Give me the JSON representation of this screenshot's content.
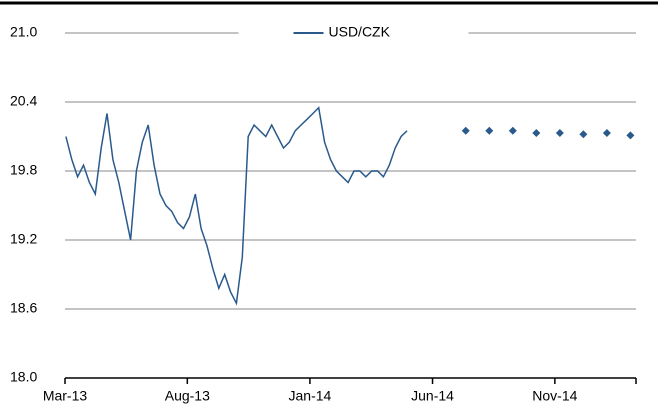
{
  "chart_data": {
    "type": "line",
    "series": [
      {
        "name": "USD/CZK",
        "color": "#2a5a8c",
        "x": [
          2013.17,
          2013.19,
          2013.21,
          2013.23,
          2013.25,
          2013.27,
          2013.29,
          2013.31,
          2013.33,
          2013.35,
          2013.37,
          2013.39,
          2013.41,
          2013.43,
          2013.45,
          2013.47,
          2013.49,
          2013.51,
          2013.53,
          2013.55,
          2013.57,
          2013.59,
          2013.61,
          2013.63,
          2013.65,
          2013.67,
          2013.69,
          2013.71,
          2013.73,
          2013.75,
          2013.77,
          2013.79,
          2013.81,
          2013.83,
          2013.85,
          2013.87,
          2013.89,
          2013.91,
          2013.93,
          2013.95,
          2013.97,
          2013.99,
          2014.01,
          2014.03,
          2014.05,
          2014.07,
          2014.09,
          2014.11,
          2014.13,
          2014.15,
          2014.17,
          2014.19,
          2014.21,
          2014.23,
          2014.25,
          2014.27,
          2014.29,
          2014.31,
          2014.33
        ],
        "values": [
          20.1,
          19.9,
          19.75,
          19.85,
          19.7,
          19.6,
          20.0,
          20.3,
          19.9,
          19.7,
          19.45,
          19.2,
          19.8,
          20.05,
          20.2,
          19.85,
          19.6,
          19.5,
          19.45,
          19.35,
          19.3,
          19.4,
          19.6,
          19.3,
          19.15,
          18.95,
          18.78,
          18.9,
          18.75,
          18.65,
          19.05,
          20.1,
          20.2,
          20.15,
          20.1,
          20.2,
          20.1,
          20.0,
          20.05,
          20.15,
          20.2,
          20.25,
          20.3,
          20.35,
          20.05,
          19.9,
          19.8,
          19.75,
          19.7,
          19.8,
          19.8,
          19.75,
          19.8,
          19.8,
          19.75,
          19.85,
          20.0,
          20.1,
          20.15
        ]
      },
      {
        "type": "scatter",
        "color": "#2a5a8c",
        "x": [
          2014.53,
          2014.61,
          2014.69,
          2014.77,
          2014.85,
          2014.93,
          2015.01,
          2015.09
        ],
        "values": [
          20.15,
          20.15,
          20.15,
          20.13,
          20.13,
          20.12,
          20.13,
          20.11
        ]
      }
    ],
    "xlim": [
      2013.167,
      2015.109
    ],
    "xticks": [
      {
        "value": 2013.167,
        "label": "Mar-13"
      },
      {
        "value": 2013.583,
        "label": "Aug-13"
      },
      {
        "value": 2014.0,
        "label": "Jan-14"
      },
      {
        "value": 2014.417,
        "label": "Jun-14"
      },
      {
        "value": 2014.833,
        "label": "Nov-14"
      }
    ],
    "ylim": [
      18.0,
      21.0
    ],
    "yticks": [
      {
        "value": 18.0,
        "label": "18.0"
      },
      {
        "value": 18.6,
        "label": "18.6"
      },
      {
        "value": 19.2,
        "label": "19.2"
      },
      {
        "value": 19.8,
        "label": "19.8"
      },
      {
        "value": 20.4,
        "label": "20.4"
      },
      {
        "value": 21.0,
        "label": "21.0"
      }
    ],
    "grid": true,
    "legend": "top"
  }
}
